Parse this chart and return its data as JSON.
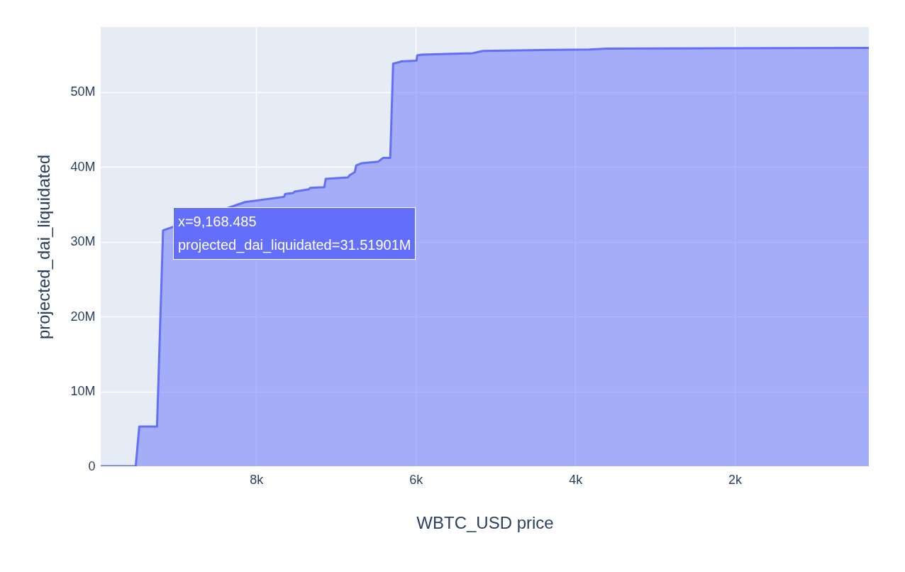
{
  "chart_data": {
    "type": "area",
    "xlabel": "WBTC_USD price",
    "ylabel": "projected_dai_liquidated",
    "x": [
      9950,
      9511,
      9467,
      9244,
      9168.485,
      8142,
      7653,
      7636,
      7538,
      7520,
      7342,
      7324,
      7147,
      7129,
      6853,
      6827,
      6764,
      6747,
      6676,
      6471,
      6436,
      6409,
      6320,
      6284,
      6204,
      6187,
      5991,
      5982,
      5920,
      5289,
      5156,
      3822,
      3600,
      320
    ],
    "series": [
      {
        "color": "#636efa",
        "values": [
          0,
          0,
          5300000,
          5300000,
          31519010,
          35300000,
          36000000,
          36400000,
          36500000,
          36700000,
          37000000,
          37200000,
          37300000,
          38400000,
          38600000,
          38900000,
          39300000,
          40200000,
          40500000,
          40700000,
          41000000,
          41200000,
          41200000,
          53800000,
          54000000,
          54100000,
          54200000,
          54900000,
          55000000,
          55200000,
          55500000,
          55700000,
          55800000,
          55900000
        ]
      }
    ],
    "xlim": [
      9950,
      320
    ],
    "xticks": [
      {
        "value": 8000,
        "label": "8k"
      },
      {
        "value": 6000,
        "label": "6k"
      },
      {
        "value": 4000,
        "label": "4k"
      },
      {
        "value": 2000,
        "label": "2k"
      }
    ],
    "ylim": [
      0,
      58700000
    ],
    "yticks": [
      0,
      {
        "value": 10000000,
        "label": "10M"
      },
      {
        "value": 20000000,
        "label": "20M"
      },
      {
        "value": 30000000,
        "label": "30M"
      },
      {
        "value": 40000000,
        "label": "40M"
      },
      {
        "value": 50000000,
        "label": "50M"
      }
    ],
    "grid": true,
    "annotations": [
      {
        "text": "x=9,168.485\nprojected_dai_liquidated=31.51901M",
        "x": 9168.485,
        "y": 31519010
      }
    ]
  }
}
